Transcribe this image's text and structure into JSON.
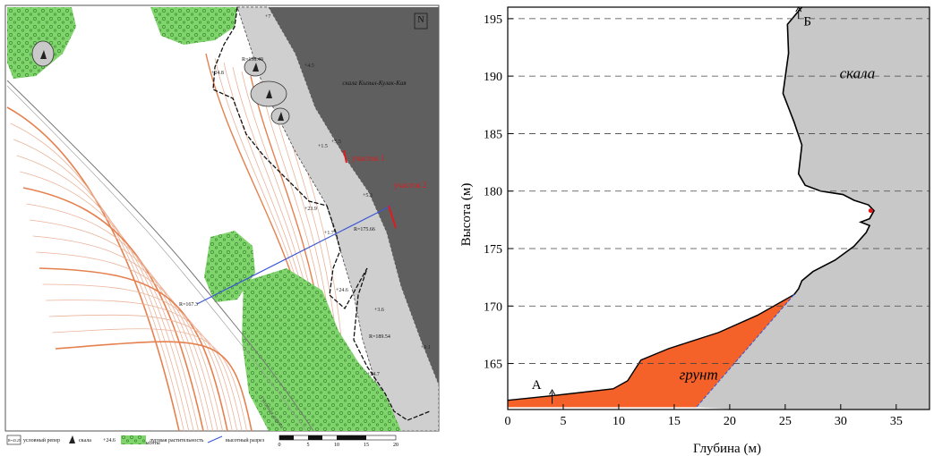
{
  "map": {
    "north_label": "N",
    "cliff_label": "скала Кызыл-Кулак-Кая",
    "site1_label": "участок 1",
    "site2_label": "участок 2",
    "benchmark_labels": [
      "R=158.49",
      "R=175.66",
      "R=189.54",
      "R=167.3"
    ],
    "spot_heights": [
      "+7",
      "+4.5",
      "+24.8",
      "+1.5",
      "+5.5",
      "+5.3",
      "+23.9",
      "+1.7",
      "+24.6",
      "+3.6",
      "+24.7",
      "+9.1"
    ],
    "road_label": "Гугонная дорога",
    "legend": [
      {
        "symbol": "R=43.25",
        "label": "условный репер"
      },
      {
        "symbol": "rock",
        "label": "скала"
      },
      {
        "symbol": "+24.6",
        "label": "отметка высоты"
      },
      {
        "symbol": "meadow",
        "label": "луговая растительность"
      },
      {
        "symbol": "profile",
        "label": "высотный разрез"
      }
    ],
    "scale_ticks": [
      "0",
      "5",
      "10",
      "15",
      "20"
    ],
    "colors": {
      "rock": "#5f5f5f",
      "scree": "#cfcfcf",
      "meadow": "#7fd46b",
      "contour": "#e9a98a",
      "profile_line": "#3a55d6",
      "highlight": "#e31a1c"
    }
  },
  "profile": {
    "xlabel": "Глубина (м)",
    "ylabel": "Высота (м)",
    "rock_label": "скала",
    "soil_label": "грунт",
    "point_a": "А",
    "point_b": "Б",
    "x_ticks": [
      "0",
      "5",
      "10",
      "15",
      "20",
      "25",
      "30",
      "35"
    ],
    "y_ticks": [
      "165",
      "170",
      "175",
      "180",
      "185",
      "190",
      "195"
    ]
  },
  "chart_data": {
    "type": "area",
    "xlim": [
      0,
      38
    ],
    "ylim": [
      161,
      196
    ],
    "grid": "dashed horizontal",
    "series": [
      {
        "name": "скала",
        "color": "#c8c8c8",
        "x": [
          26.5,
          25.2,
          25.3,
          24.8,
          25.8,
          26.5,
          26.2,
          26.8,
          28.2,
          30.2,
          31.2,
          32.5,
          33.0,
          32.6,
          31.8,
          32.6,
          32.3,
          31.2,
          29.5,
          27.5,
          26.5,
          26.2,
          25.8,
          17.0
        ],
        "y": [
          196.0,
          194.5,
          192.0,
          188.5,
          186.0,
          184.0,
          181.5,
          180.5,
          180.0,
          179.7,
          179.2,
          178.8,
          178.3,
          177.6,
          177.3,
          177.0,
          176.4,
          175.2,
          174.0,
          173.0,
          172.2,
          171.5,
          171.0,
          161.2
        ]
      },
      {
        "name": "грунт",
        "color": "#f4622a",
        "x": [
          0,
          4,
          9.5,
          10.8,
          12.0,
          14.5,
          19.0,
          22.5,
          25.8,
          17.0,
          0
        ],
        "y": [
          161.8,
          162.2,
          162.8,
          163.5,
          165.3,
          166.3,
          167.7,
          169.2,
          171.0,
          161.2,
          161.2
        ]
      }
    ],
    "annotations": [
      "А",
      "Б",
      "скала",
      "грунт"
    ]
  }
}
